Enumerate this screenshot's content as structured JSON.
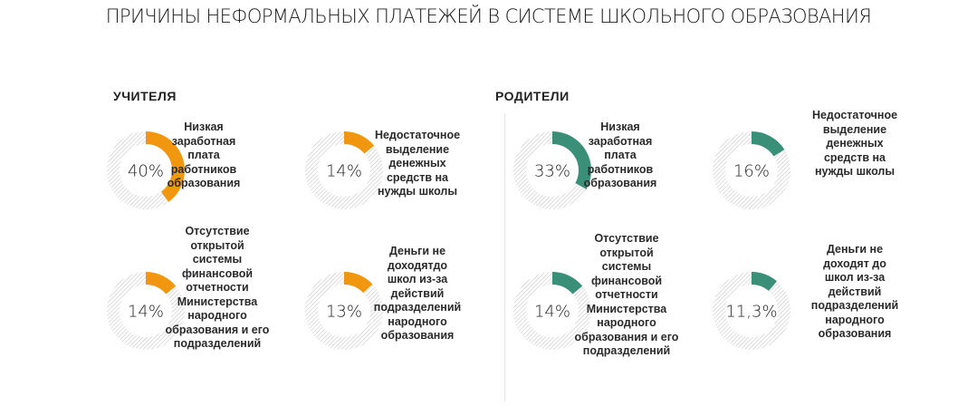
{
  "title": "ПРИЧИНЫ НЕФОРМАЛЬНЫХ ПЛАТЕЖЕЙ В СИСТЕМЕ ШКОЛЬНОГО ОБРАЗОВАНИЯ",
  "colors": {
    "teachers": "#F0960F",
    "parents": "#3A8F78",
    "track_hatch": "#BDBDBD"
  },
  "chart_data": [
    {
      "type": "pie",
      "title": "УЧИТЕЛЯ",
      "color": "#F0960F",
      "items": [
        {
          "value": 40,
          "value_label": "40%",
          "label": "Низкая\nзаработная\nплата\nработников\nобразования"
        },
        {
          "value": 14,
          "value_label": "14%",
          "label": "Недостаточное\nвыделение\nденежных\nсредств на\nнужды школы"
        },
        {
          "value": 14,
          "value_label": "14%",
          "label": "Отсутствие\nоткрытой\nсистемы\nфинансовой\nотчетности\nМинистерства\nнародного\nобразования и его\nподразделений"
        },
        {
          "value": 13,
          "value_label": "13%",
          "label": "Деньги не\nдоходятдо\nшкол из-за\nдействий\nподразделений\nнародного\nобразования"
        }
      ]
    },
    {
      "type": "pie",
      "title": "РОДИТЕЛИ",
      "color": "#3A8F78",
      "items": [
        {
          "value": 33,
          "value_label": "33%",
          "label": "Низкая\nзаработная\nплата\nработников\nобразования"
        },
        {
          "value": 16,
          "value_label": "16%",
          "label": "Недостаточное\nвыделение\nденежных\nсредств на\nнужды школы"
        },
        {
          "value": 14,
          "value_label": "14%",
          "label": "Отсутствие\nоткрытой\nсистемы\nфинансовой\nотчетности\nМинистерства\nнародного\nобразования и его\nподразделений"
        },
        {
          "value": 11.3,
          "value_label": "11,3%",
          "label": "Деньги не\nдоходят до\nшкол из-за\nдействий\nподразделений\nнародного\nобразования"
        }
      ]
    }
  ]
}
